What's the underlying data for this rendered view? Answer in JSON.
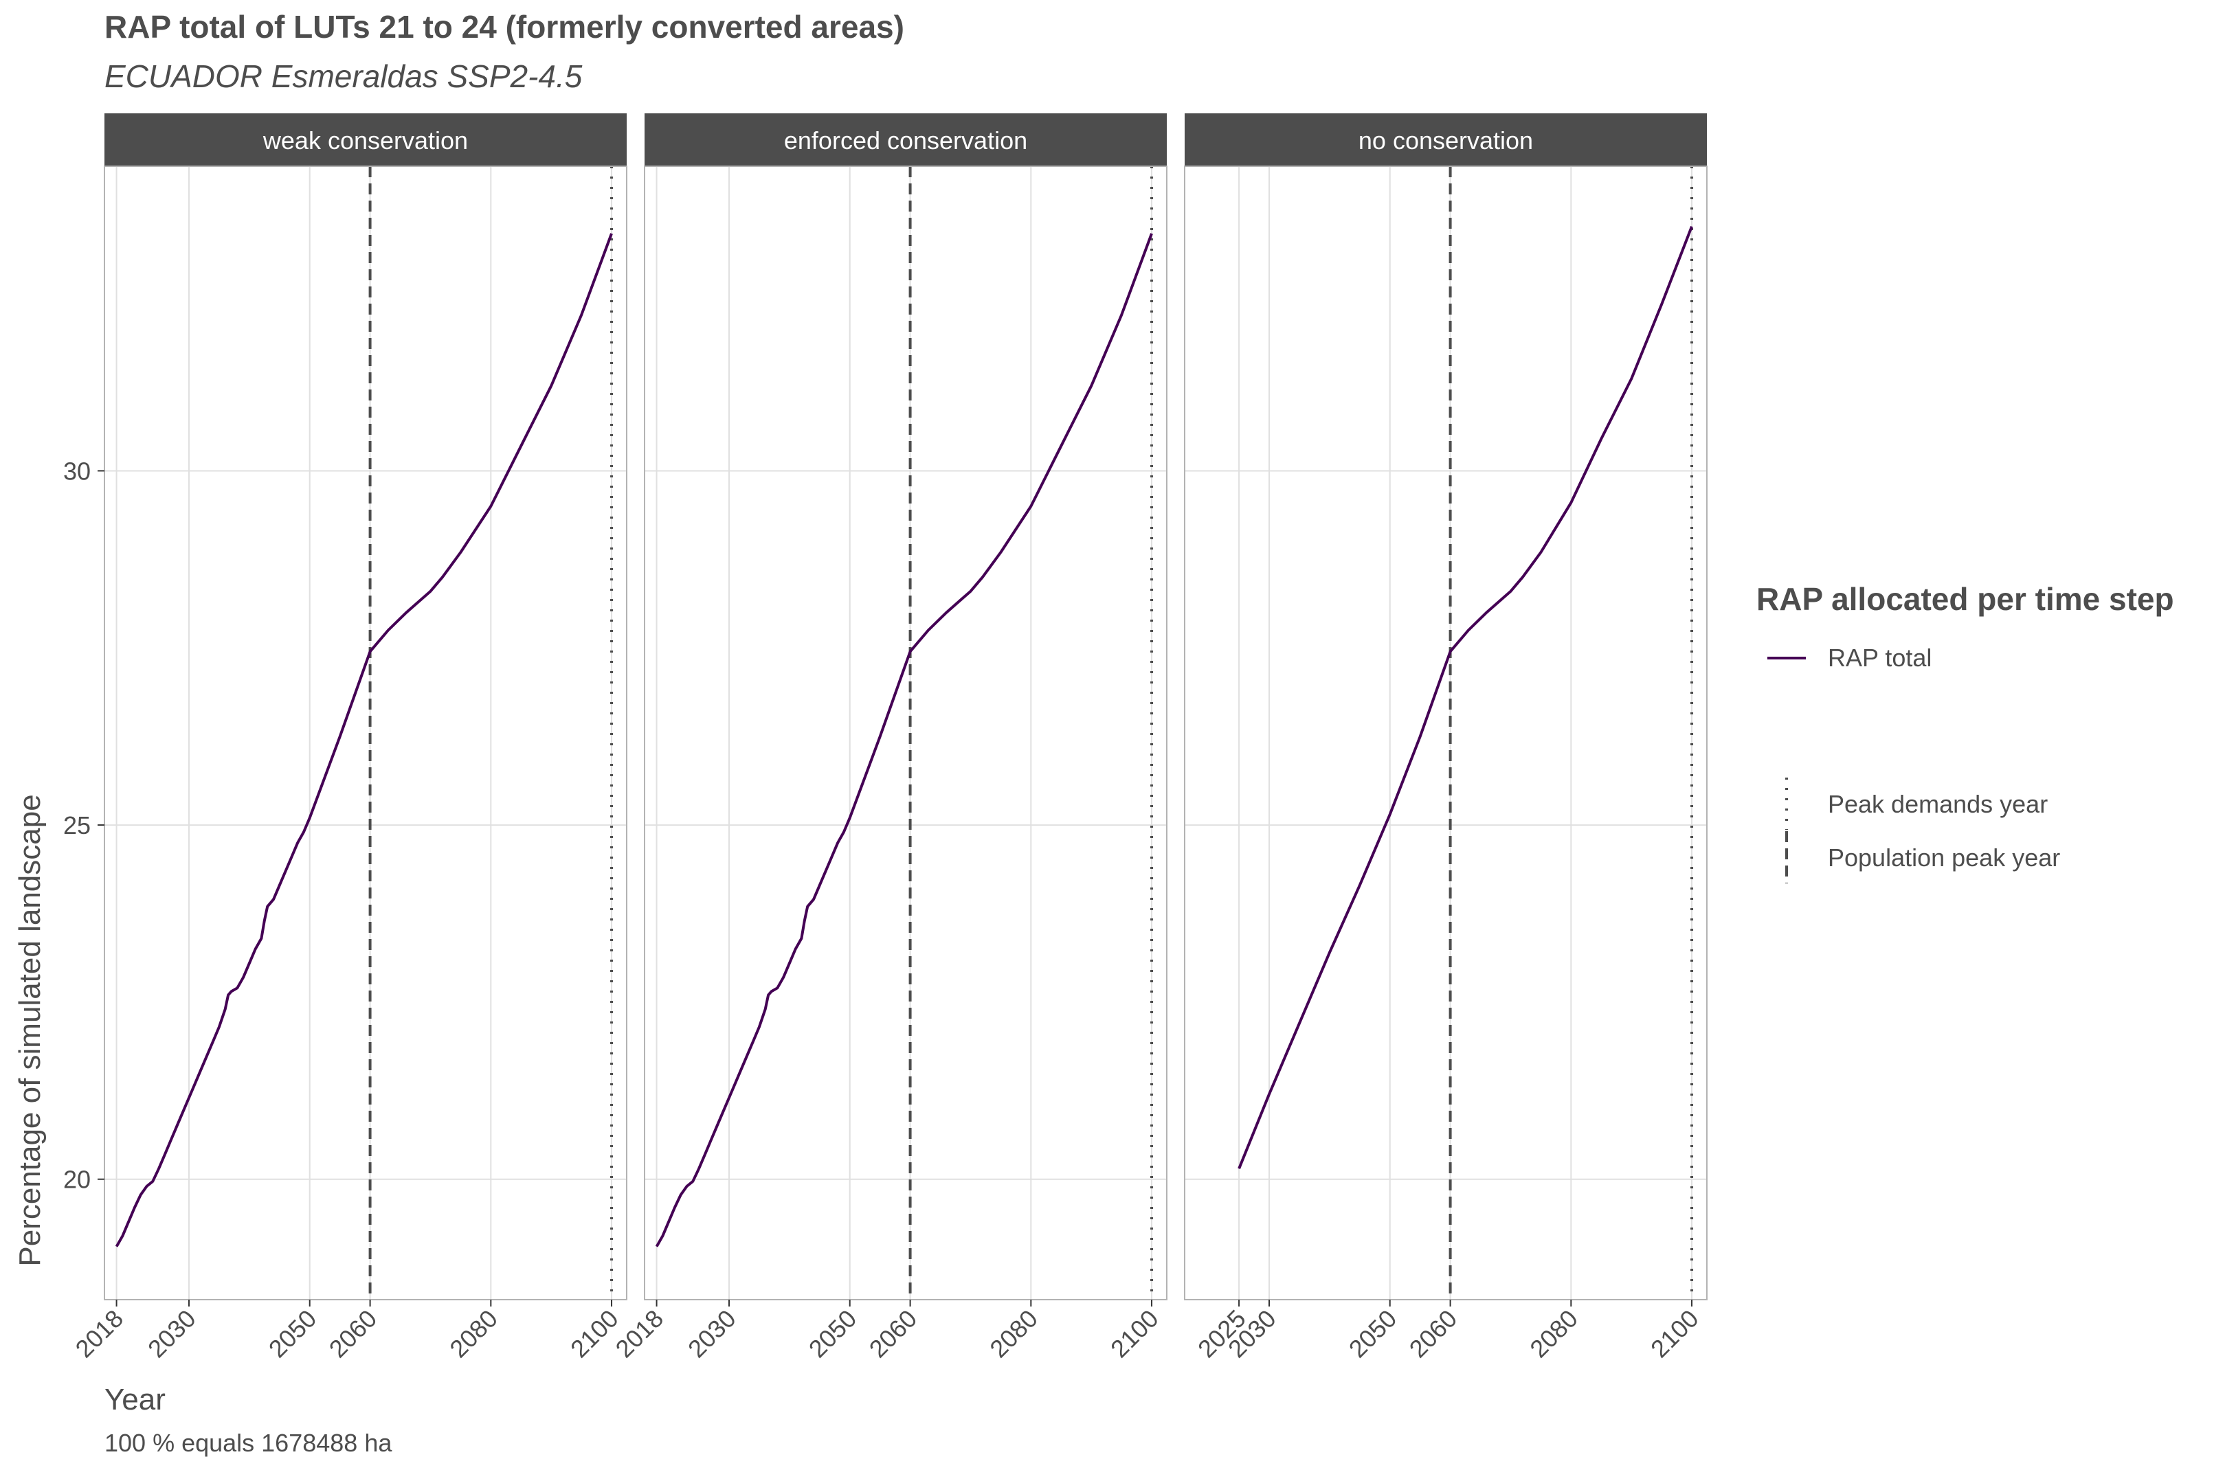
{
  "title": "RAP total of LUTs 21 to 24 (formerly converted areas)",
  "subtitle": "ECUADOR Esmeraldas SSP2-4.5",
  "caption": "100 % equals 1678488 ha",
  "legend": {
    "title": "RAP allocated per time step",
    "series_label": "RAP total",
    "peak_demands_label": "Peak demands year",
    "population_peak_label": "Population peak year"
  },
  "colors": {
    "series": "#440154",
    "strip": "#4d4d4d",
    "grid": "#e0e0e0",
    "panel_border": "#b3b3b3",
    "vline": "#4d4d4d"
  },
  "chart_data": {
    "type": "line",
    "xlabel": "Year",
    "ylabel": "Percentage of simulated landscape",
    "xlim": [
      2016,
      2102.5
    ],
    "ylim": [
      18.3,
      34.3
    ],
    "yticks": [
      20,
      25,
      30
    ],
    "grid": true,
    "legend_position": "right",
    "population_peak_year": 2060,
    "peak_demands_year": 2100,
    "panels": [
      {
        "name": "weak conservation",
        "xticks": [
          2018,
          2030,
          2050,
          2060,
          2080,
          2100
        ],
        "series": [
          {
            "name": "RAP total",
            "x": [
              2018,
              2019,
              2020,
              2021,
              2022,
              2023,
              2024,
              2025,
              2026,
              2027,
              2028,
              2029,
              2030,
              2031,
              2032,
              2033,
              2034,
              2035,
              2036,
              2036.5,
              2037,
              2038,
              2039,
              2040,
              2041,
              2042,
              2042.5,
              2043,
              2044,
              2045,
              2046,
              2047,
              2048,
              2049,
              2050,
              2055,
              2060,
              2063,
              2066,
              2070,
              2072,
              2075,
              2080,
              2085,
              2090,
              2095,
              2100
            ],
            "y": [
              19.05,
              19.2,
              19.4,
              19.6,
              19.78,
              19.9,
              19.97,
              20.15,
              20.35,
              20.55,
              20.75,
              20.95,
              21.15,
              21.35,
              21.55,
              21.75,
              21.95,
              22.15,
              22.4,
              22.6,
              22.65,
              22.7,
              22.85,
              23.05,
              23.25,
              23.4,
              23.65,
              23.85,
              23.95,
              24.15,
              24.35,
              24.55,
              24.75,
              24.9,
              25.1,
              26.25,
              27.45,
              27.75,
              28.0,
              28.3,
              28.5,
              28.85,
              29.5,
              30.35,
              31.2,
              32.2,
              33.35
            ]
          }
        ]
      },
      {
        "name": "enforced conservation",
        "xticks": [
          2018,
          2030,
          2050,
          2060,
          2080,
          2100
        ],
        "series": [
          {
            "name": "RAP total",
            "x": [
              2018,
              2019,
              2020,
              2021,
              2022,
              2023,
              2024,
              2025,
              2026,
              2027,
              2028,
              2029,
              2030,
              2031,
              2032,
              2033,
              2034,
              2035,
              2036,
              2036.5,
              2037,
              2038,
              2039,
              2040,
              2041,
              2042,
              2042.5,
              2043,
              2044,
              2045,
              2046,
              2047,
              2048,
              2049,
              2050,
              2055,
              2060,
              2063,
              2066,
              2070,
              2072,
              2075,
              2080,
              2085,
              2090,
              2095,
              2100
            ],
            "y": [
              19.05,
              19.2,
              19.4,
              19.6,
              19.78,
              19.9,
              19.97,
              20.15,
              20.35,
              20.55,
              20.75,
              20.95,
              21.15,
              21.35,
              21.55,
              21.75,
              21.95,
              22.15,
              22.4,
              22.6,
              22.65,
              22.7,
              22.85,
              23.05,
              23.25,
              23.4,
              23.65,
              23.85,
              23.95,
              24.15,
              24.35,
              24.55,
              24.75,
              24.9,
              25.1,
              26.25,
              27.45,
              27.75,
              28.0,
              28.3,
              28.5,
              28.85,
              29.5,
              30.35,
              31.2,
              32.2,
              33.35
            ]
          }
        ]
      },
      {
        "name": "no conservation",
        "xticks": [
          2025,
          2030,
          2050,
          2060,
          2080,
          2100
        ],
        "series": [
          {
            "name": "RAP total",
            "x": [
              2025,
              2030,
              2035,
              2040,
              2045,
              2050,
              2055,
              2060,
              2063,
              2066,
              2070,
              2072,
              2075,
              2080,
              2085,
              2090,
              2095,
              2100
            ],
            "y": [
              20.15,
              21.2,
              22.2,
              23.2,
              24.15,
              25.15,
              26.25,
              27.45,
              27.75,
              28.0,
              28.3,
              28.5,
              28.85,
              29.55,
              30.45,
              31.3,
              32.35,
              33.45
            ]
          }
        ]
      }
    ]
  }
}
